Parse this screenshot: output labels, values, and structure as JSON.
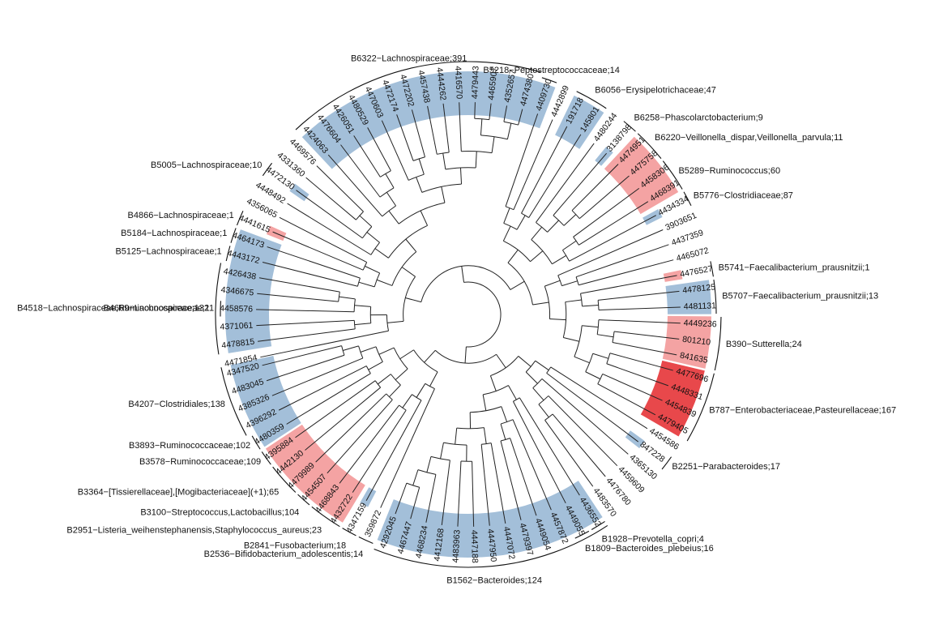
{
  "colors": {
    "blue": "#a3bfd9",
    "pink": "#f4a3a3",
    "red": "#e8484b",
    "line": "#222222"
  },
  "tips": [
    {
      "label": "4471854",
      "hl": null
    },
    {
      "label": "4478815",
      "hl": "blue"
    },
    {
      "label": "4371061",
      "hl": "blue"
    },
    {
      "label": "4458576",
      "hl": "blue"
    },
    {
      "label": "4346675",
      "hl": "blue"
    },
    {
      "label": "4426438",
      "hl": "blue"
    },
    {
      "label": "4443172",
      "hl": "blue"
    },
    {
      "label": "4464173",
      "hl": "blue"
    },
    {
      "label": "4441615",
      "hl": "pink"
    },
    {
      "label": "4356065",
      "hl": null
    },
    {
      "label": "4448492",
      "hl": null
    },
    {
      "label": "4472130",
      "hl": "blue"
    },
    {
      "label": "4331360",
      "hl": null
    },
    {
      "label": "4469576",
      "hl": null
    },
    {
      "label": "4424063",
      "hl": "blue"
    },
    {
      "label": "4476604",
      "hl": "blue"
    },
    {
      "label": "4426051",
      "hl": "blue"
    },
    {
      "label": "4480529",
      "hl": "blue"
    },
    {
      "label": "4470603",
      "hl": "blue"
    },
    {
      "label": "4472174",
      "hl": "blue"
    },
    {
      "label": "4472202",
      "hl": "blue"
    },
    {
      "label": "4457438",
      "hl": "blue"
    },
    {
      "label": "4444262",
      "hl": "blue"
    },
    {
      "label": "4416570",
      "hl": "blue"
    },
    {
      "label": "4479443",
      "hl": "blue"
    },
    {
      "label": "4465907",
      "hl": "blue"
    },
    {
      "label": "4352657",
      "hl": "blue"
    },
    {
      "label": "4474380",
      "hl": "blue"
    },
    {
      "label": "4409730",
      "hl": "blue"
    },
    {
      "label": "4442899",
      "hl": null
    },
    {
      "label": "191718",
      "hl": "blue"
    },
    {
      "label": "145801",
      "hl": "blue"
    },
    {
      "label": "4480244",
      "hl": null
    },
    {
      "label": "3138798",
      "hl": "blue"
    },
    {
      "label": "4474951",
      "hl": "pink"
    },
    {
      "label": "4475758",
      "hl": "pink"
    },
    {
      "label": "4458306",
      "hl": "pink"
    },
    {
      "label": "4468391",
      "hl": "pink"
    },
    {
      "label": "4434334",
      "hl": "blue"
    },
    {
      "label": "3903651",
      "hl": null
    },
    {
      "label": "4437359",
      "hl": null
    },
    {
      "label": "4465072",
      "hl": null
    },
    {
      "label": "4476527",
      "hl": "pink"
    },
    {
      "label": "4478125",
      "hl": "blue"
    },
    {
      "label": "4481131",
      "hl": "blue"
    },
    {
      "label": "4449236",
      "hl": "pink"
    },
    {
      "label": "801210",
      "hl": "pink"
    },
    {
      "label": "841635",
      "hl": "pink"
    },
    {
      "label": "4477696",
      "hl": "red"
    },
    {
      "label": "4448331",
      "hl": "red"
    },
    {
      "label": "4454839",
      "hl": "red"
    },
    {
      "label": "4479405",
      "hl": "red"
    },
    {
      "label": "4454586",
      "hl": null
    },
    {
      "label": "847228",
      "hl": "blue"
    },
    {
      "label": "4365130",
      "hl": null
    },
    {
      "label": "4459609",
      "hl": null
    },
    {
      "label": "4476780",
      "hl": null
    },
    {
      "label": "4483570",
      "hl": null
    },
    {
      "label": "4436552",
      "hl": "blue"
    },
    {
      "label": "4449055",
      "hl": "blue"
    },
    {
      "label": "4457872",
      "hl": "blue"
    },
    {
      "label": "4449054",
      "hl": "blue"
    },
    {
      "label": "4479397",
      "hl": "blue"
    },
    {
      "label": "4447072",
      "hl": "blue"
    },
    {
      "label": "4447950",
      "hl": "blue"
    },
    {
      "label": "4447188",
      "hl": "blue"
    },
    {
      "label": "4483963",
      "hl": "blue"
    },
    {
      "label": "4412168",
      "hl": "blue"
    },
    {
      "label": "4468234",
      "hl": "blue"
    },
    {
      "label": "4467447",
      "hl": "blue"
    },
    {
      "label": "4292045",
      "hl": "blue"
    },
    {
      "label": "359872",
      "hl": null
    },
    {
      "label": "4347159",
      "hl": "blue"
    },
    {
      "label": "4432722",
      "hl": "pink"
    },
    {
      "label": "4468843",
      "hl": "pink"
    },
    {
      "label": "4454507",
      "hl": "pink"
    },
    {
      "label": "4479989",
      "hl": "pink"
    },
    {
      "label": "4442130",
      "hl": "pink"
    },
    {
      "label": "4395884",
      "hl": "pink"
    },
    {
      "label": "4480359",
      "hl": "blue"
    },
    {
      "label": "4396292",
      "hl": "blue"
    },
    {
      "label": "4385326",
      "hl": "blue"
    },
    {
      "label": "4483045",
      "hl": "blue"
    },
    {
      "label": "4347520",
      "hl": "blue"
    }
  ],
  "clades": [
    {
      "label": "B1562−Bacteroides;124",
      "from": 58,
      "to": 70
    },
    {
      "label": "B1809−Bacteroides_plebeius;16",
      "from": 59,
      "to": 59
    },
    {
      "label": "B1928−Prevotella_copri;4",
      "from": 58,
      "to": 58
    },
    {
      "label": "B2251−Parabacteroides;17",
      "from": 53,
      "to": 53
    },
    {
      "label": "B787−Enterobacteriaceae,Pasteurellaceae;167",
      "from": 48,
      "to": 51
    },
    {
      "label": "B390−Sutterella;24",
      "from": 45,
      "to": 47
    },
    {
      "label": "B5707−Faecalibacterium_prausnitzii;13",
      "from": 43,
      "to": 44
    },
    {
      "label": "B5741−Faecalibacterium_prausnitzii;1",
      "from": 42,
      "to": 42
    },
    {
      "label": "B5776−Clostridiaceae;87",
      "from": 38,
      "to": 38
    },
    {
      "label": "B5289−Ruminococcus;60",
      "from": 36,
      "to": 37
    },
    {
      "label": "B6220−Veillonella_dispar,Veillonella_parvula;11",
      "from": 34,
      "to": 35
    },
    {
      "label": "B6258−Phascolarctobacterium;9",
      "from": 33,
      "to": 33
    },
    {
      "label": "B6056−Erysipelotrichaceae;47",
      "from": 30,
      "to": 31
    },
    {
      "label": "B5218−Peptostreptococcaceae;14",
      "from": 28,
      "to": 28
    },
    {
      "label": "B6322−Lachnospiraceae;391",
      "from": 14,
      "to": 27
    },
    {
      "label": "B5005−Lachnospiraceae;10",
      "from": 11,
      "to": 11
    },
    {
      "label": "B4866−Lachnospiraceae;1",
      "from": 8,
      "to": 8
    },
    {
      "label": "B5184−Lachnospiraceae;1",
      "from": 7,
      "to": 7
    },
    {
      "label": "B5125−Lachnospiraceae;1",
      "from": 6,
      "to": 6
    },
    {
      "label": "B4669−Lachnospiraceae;11",
      "from": 3,
      "to": 3
    },
    {
      "label": "B4518−Lachnospiraceae,Ruminococcaceae;132",
      "from": 1,
      "to": 5
    },
    {
      "label": "B4207−Clostridiales;138",
      "from": 80,
      "to": 83
    },
    {
      "label": "B3893−Ruminococcaceae;102",
      "from": 79,
      "to": 79
    },
    {
      "label": "B3578−Ruminococcaceae;109",
      "from": 78,
      "to": 78
    },
    {
      "label": "B3364−[Tissierellaceae],[Mogibacteriaceae](+1);65",
      "from": 76,
      "to": 77
    },
    {
      "label": "B3100−Streptococcus,Lactobacillus;104",
      "from": 75,
      "to": 75
    },
    {
      "label": "B2951−Listeria_weihenstephanensis,Staphylococcus_aureus;23",
      "from": 73,
      "to": 74
    },
    {
      "label": "B2841−Fusobacterium;18",
      "from": 72,
      "to": 72
    },
    {
      "label": "B2536−Bifidobacterium_adolescentis;14",
      "from": 71,
      "to": 71
    }
  ],
  "tree": [
    [
      [
        [
          0,
          [
            [
              1,
              2
            ],
            [
              3,
              [
                4,
                5
              ]
            ]
          ]
        ],
        [
          [
            [
              6,
              7
            ],
            [
              8,
              9
            ]
          ],
          [
            [
              10,
              [
                11,
                [
                  12,
                  13
                ]
              ]
            ],
            [
              [
                14,
                [
                  15,
                  [
                    16,
                    17
                  ]
                ]
              ],
              [
                [
                  18,
                  [
                    19,
                    20
                  ]
                ],
                [
                  [
                    21,
                    22
                  ],
                  [
                    23,
                    [
                      [
                        24,
                        25
                      ],
                      [
                        26,
                        27
                      ]
                    ]
                  ]
                ]
              ]
            ]
          ]
        ]
      ],
      [
        [
          [
            [
              28,
              29
            ],
            [
              30,
              31
            ]
          ],
          [
            [
              32,
              [
                33,
                [
                  34,
                  35
                ]
              ]
            ],
            [
              [
                36,
                37
              ],
              38
            ]
          ]
        ],
        [
          [
            39,
            [
              40,
              41
            ]
          ],
          [
            [
              42,
              [
                43,
                44
              ]
            ],
            [
              [
                45,
                [
                  46,
                  47
                ]
              ],
              [
                [
                  48,
                  49
                ],
                [
                  50,
                  51
                ]
              ]
            ]
          ]
        ]
      ]
    ],
    [
      [
        [
          [
            52,
            53
          ],
          [
            54,
            [
              55,
              [
                56,
                57
              ]
            ]
          ]
        ],
        [
          [
            58,
            59
          ],
          [
            [
              60,
              [
                61,
                62
              ]
            ],
            [
              [
                63,
                64
              ],
              [
                [
                  65,
                  66
                ],
                [
                  67,
                  [
                    68,
                    [
                      69,
                      70
                    ]
                  ]
                ]
              ]
            ]
          ]
        ]
      ],
      [
        [
          71,
          [
            72,
            [
              73,
              74
            ]
          ]
        ],
        [
          [
            [
              75,
              76
            ],
            [
              77,
              78
            ]
          ],
          [
            [
              79,
              80
            ],
            [
              81,
              [
                82,
                83
              ]
            ]
          ]
        ]
      ]
    ]
  ]
}
